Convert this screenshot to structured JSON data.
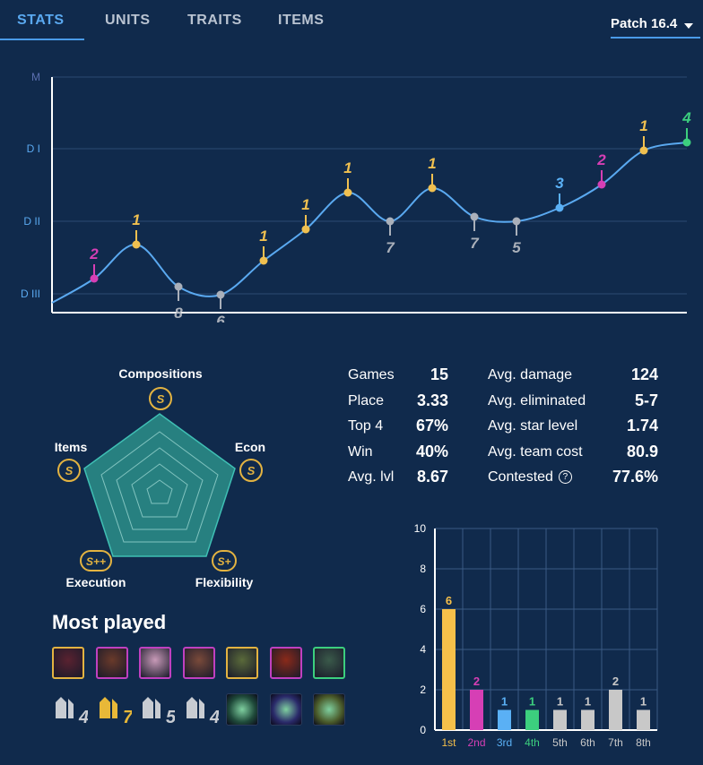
{
  "tabs": [
    {
      "label": "STATS",
      "active": true
    },
    {
      "label": "UNITS",
      "active": false
    },
    {
      "label": "TRAITS",
      "active": false
    },
    {
      "label": "ITEMS",
      "active": false
    }
  ],
  "patch": {
    "label": "Patch 16.4"
  },
  "rank_chart": {
    "type": "line",
    "y_ticks": [
      "M",
      "D I",
      "D II",
      "D III"
    ],
    "points": [
      {
        "place": "2",
        "color": "#d63fb5"
      },
      {
        "place": "1",
        "color": "#f0c050"
      },
      {
        "place": "8",
        "color": "#aab0ba"
      },
      {
        "place": "6",
        "color": "#aab0ba"
      },
      {
        "place": "1",
        "color": "#f0c050"
      },
      {
        "place": "1",
        "color": "#f0c050"
      },
      {
        "place": "1",
        "color": "#f0c050"
      },
      {
        "place": "7",
        "color": "#aab0ba"
      },
      {
        "place": "1",
        "color": "#f0c050"
      },
      {
        "place": "7",
        "color": "#aab0ba"
      },
      {
        "place": "5",
        "color": "#aab0ba"
      },
      {
        "place": "3",
        "color": "#5ab0f5"
      },
      {
        "place": "2",
        "color": "#d63fb5"
      },
      {
        "place": "1",
        "color": "#f0c050"
      },
      {
        "place": "4",
        "color": "#3ccf7e"
      }
    ]
  },
  "radar": {
    "axes": [
      {
        "label": "Compositions",
        "grade": "S"
      },
      {
        "label": "Econ",
        "grade": "S"
      },
      {
        "label": "Flexibility",
        "grade": "S+"
      },
      {
        "label": "Execution",
        "grade": "S++"
      },
      {
        "label": "Items",
        "grade": "S"
      }
    ]
  },
  "stats_left": [
    {
      "label": "Games",
      "value": "15"
    },
    {
      "label": "Place",
      "value": "3.33"
    },
    {
      "label": "Top 4",
      "value": "67%"
    },
    {
      "label": "Win",
      "value": "40%"
    },
    {
      "label": "Avg. lvl",
      "value": "8.67"
    }
  ],
  "stats_right": [
    {
      "label": "Avg. damage",
      "value": "124"
    },
    {
      "label": "Avg. eliminated",
      "value": "5-7"
    },
    {
      "label": "Avg. star level",
      "value": "1.74"
    },
    {
      "label": "Avg. team cost",
      "value": "80.9"
    },
    {
      "label": "Contested",
      "value": "77.6%"
    }
  ],
  "most_played": {
    "title": "Most played",
    "champions": [
      {
        "icon": "champion-portrait-1",
        "border": "#e3b341",
        "fill": "#5a2230"
      },
      {
        "icon": "champion-portrait-2",
        "border": "#c040c0",
        "fill": "#6a3a2a"
      },
      {
        "icon": "champion-portrait-3",
        "border": "#c040c0",
        "fill": "#c89ab8"
      },
      {
        "icon": "champion-portrait-4",
        "border": "#c040c0",
        "fill": "#7a4a3a"
      },
      {
        "icon": "champion-portrait-5",
        "border": "#e3b341",
        "fill": "#5a6a3a"
      },
      {
        "icon": "champion-portrait-6",
        "border": "#c040c0",
        "fill": "#8a2a1a"
      },
      {
        "icon": "champion-portrait-7",
        "border": "#3ccf7e",
        "fill": "#3a5a4a"
      }
    ],
    "traits": [
      {
        "icon": "trait-icon-1",
        "count": "4",
        "color": "#c8ccd2"
      },
      {
        "icon": "trait-icon-2",
        "count": "7",
        "color": "#e8b838"
      },
      {
        "icon": "trait-icon-3",
        "count": "5",
        "color": "#c8ccd2"
      },
      {
        "icon": "trait-icon-4",
        "count": "4",
        "color": "#c8ccd2"
      }
    ],
    "items": [
      {
        "icon": "item-icon-1",
        "fill": "#1f4a3a"
      },
      {
        "icon": "item-icon-2",
        "fill": "#2a2a6a"
      },
      {
        "icon": "item-icon-3",
        "fill": "#4a5a2a"
      }
    ]
  },
  "chart_data": {
    "type": "bar",
    "categories": [
      "1st",
      "2nd",
      "3rd",
      "4th",
      "5th",
      "6th",
      "7th",
      "8th"
    ],
    "values": [
      6,
      2,
      1,
      1,
      1,
      1,
      2,
      1
    ],
    "colors": [
      "#f6c04a",
      "#d63fb5",
      "#5ab0f5",
      "#3ccf7e",
      "#c8c8c8",
      "#c8c8c8",
      "#c8c8c8",
      "#c8c8c8"
    ],
    "y_ticks": [
      "0",
      "2",
      "4",
      "6",
      "8",
      "10"
    ],
    "ylim": [
      0,
      10
    ],
    "grid": true
  }
}
